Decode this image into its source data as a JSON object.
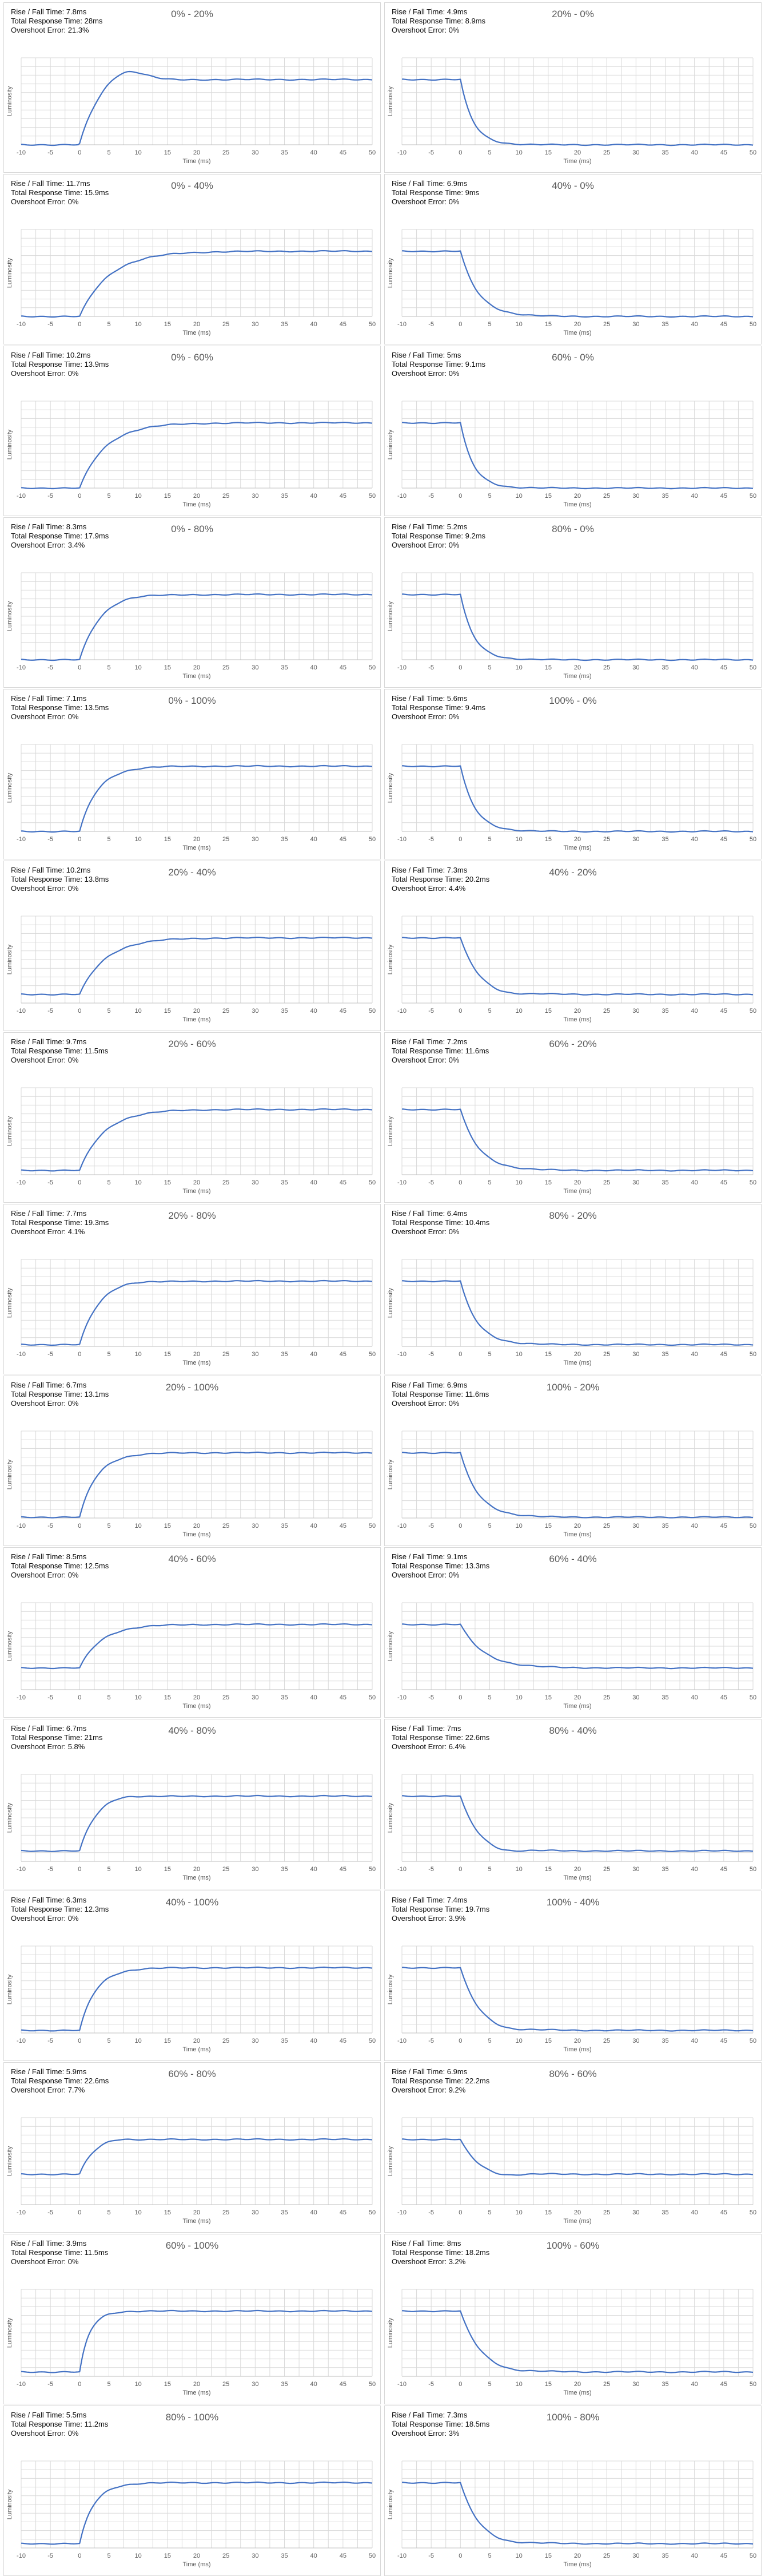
{
  "chart_data": [
    {
      "type": "line",
      "title": "0% - 20%",
      "rise_fall": "Rise / Fall Time: 7.8ms",
      "total": "Total Response Time: 28ms",
      "overshoot": "Overshoot Error: 21.3%",
      "xlabel": "Time (ms)",
      "ylabel": "Luminosity",
      "xlim": [
        -10,
        50
      ],
      "xticks": [
        -10,
        -5,
        0,
        5,
        10,
        15,
        20,
        25,
        30,
        35,
        40,
        45,
        50
      ],
      "transition": "rise",
      "start_level": 0.0,
      "end_level": 0.75,
      "response_ms": 7.8,
      "overshoot_fraction": 0.213
    },
    {
      "type": "line",
      "title": "20% - 0%",
      "rise_fall": "Rise / Fall Time: 4.9ms",
      "total": "Total Response Time: 8.9ms",
      "overshoot": "Overshoot Error: 0%",
      "xlabel": "Time (ms)",
      "ylabel": "Luminosity",
      "xlim": [
        -10,
        50
      ],
      "xticks": [
        -10,
        -5,
        0,
        5,
        10,
        15,
        20,
        25,
        30,
        35,
        40,
        45,
        50
      ],
      "transition": "fall",
      "start_level": 0.75,
      "end_level": 0.0,
      "response_ms": 4.9,
      "overshoot_fraction": 0
    },
    {
      "type": "line",
      "title": "0% - 40%",
      "rise_fall": "Rise / Fall Time: 11.7ms",
      "total": "Total Response Time: 15.9ms",
      "overshoot": "Overshoot Error: 0%",
      "xlabel": "Time (ms)",
      "ylabel": "Luminosity",
      "xlim": [
        -10,
        50
      ],
      "xticks": [
        -10,
        -5,
        0,
        5,
        10,
        15,
        20,
        25,
        30,
        35,
        40,
        45,
        50
      ],
      "transition": "rise",
      "start_level": 0.0,
      "end_level": 0.75,
      "response_ms": 11.7,
      "overshoot_fraction": 0
    },
    {
      "type": "line",
      "title": "40% - 0%",
      "rise_fall": "Rise / Fall Time: 6.9ms",
      "total": "Total Response Time: 9ms",
      "overshoot": "Overshoot Error: 0%",
      "xlabel": "Time (ms)",
      "ylabel": "Luminosity",
      "xlim": [
        -10,
        50
      ],
      "xticks": [
        -10,
        -5,
        0,
        5,
        10,
        15,
        20,
        25,
        30,
        35,
        40,
        45,
        50
      ],
      "transition": "fall",
      "start_level": 0.75,
      "end_level": 0.0,
      "response_ms": 6.9,
      "overshoot_fraction": 0
    },
    {
      "type": "line",
      "title": "0% - 60%",
      "rise_fall": "Rise / Fall Time: 10.2ms",
      "total": "Total Response Time: 13.9ms",
      "overshoot": "Overshoot Error: 0%",
      "xlabel": "Time (ms)",
      "ylabel": "Luminosity",
      "xlim": [
        -10,
        50
      ],
      "xticks": [
        -10,
        -5,
        0,
        5,
        10,
        15,
        20,
        25,
        30,
        35,
        40,
        45,
        50
      ],
      "transition": "rise",
      "start_level": 0.0,
      "end_level": 0.75,
      "response_ms": 10.2,
      "overshoot_fraction": 0
    },
    {
      "type": "line",
      "title": "60% - 0%",
      "rise_fall": "Rise / Fall Time: 5ms",
      "total": "Total Response Time: 9.1ms",
      "overshoot": "Overshoot Error: 0%",
      "xlabel": "Time (ms)",
      "ylabel": "Luminosity",
      "xlim": [
        -10,
        50
      ],
      "xticks": [
        -10,
        -5,
        0,
        5,
        10,
        15,
        20,
        25,
        30,
        35,
        40,
        45,
        50
      ],
      "transition": "fall",
      "start_level": 0.75,
      "end_level": 0.0,
      "response_ms": 5,
      "overshoot_fraction": 0
    },
    {
      "type": "line",
      "title": "0% - 80%",
      "rise_fall": "Rise / Fall Time: 8.3ms",
      "total": "Total Response Time: 17.9ms",
      "overshoot": "Overshoot Error: 3.4%",
      "xlabel": "Time (ms)",
      "ylabel": "Luminosity",
      "xlim": [
        -10,
        50
      ],
      "xticks": [
        -10,
        -5,
        0,
        5,
        10,
        15,
        20,
        25,
        30,
        35,
        40,
        45,
        50
      ],
      "transition": "rise",
      "start_level": 0.0,
      "end_level": 0.75,
      "response_ms": 8.3,
      "overshoot_fraction": 0.034
    },
    {
      "type": "line",
      "title": "80% - 0%",
      "rise_fall": "Rise / Fall Time: 5.2ms",
      "total": "Total Response Time: 9.2ms",
      "overshoot": "Overshoot Error: 0%",
      "xlabel": "Time (ms)",
      "ylabel": "Luminosity",
      "xlim": [
        -10,
        50
      ],
      "xticks": [
        -10,
        -5,
        0,
        5,
        10,
        15,
        20,
        25,
        30,
        35,
        40,
        45,
        50
      ],
      "transition": "fall",
      "start_level": 0.75,
      "end_level": 0.0,
      "response_ms": 5.2,
      "overshoot_fraction": 0
    },
    {
      "type": "line",
      "title": "0% - 100%",
      "rise_fall": "Rise / Fall Time: 7.1ms",
      "total": "Total Response Time: 13.5ms",
      "overshoot": "Overshoot Error: 0%",
      "xlabel": "Time (ms)",
      "ylabel": "Luminosity",
      "xlim": [
        -10,
        50
      ],
      "xticks": [
        -10,
        -5,
        0,
        5,
        10,
        15,
        20,
        25,
        30,
        35,
        40,
        45,
        50
      ],
      "transition": "rise",
      "start_level": 0.0,
      "end_level": 0.75,
      "response_ms": 7.1,
      "overshoot_fraction": 0
    },
    {
      "type": "line",
      "title": "100% - 0%",
      "rise_fall": "Rise / Fall Time: 5.6ms",
      "total": "Total Response Time: 9.4ms",
      "overshoot": "Overshoot Error: 0%",
      "xlabel": "Time (ms)",
      "ylabel": "Luminosity",
      "xlim": [
        -10,
        50
      ],
      "xticks": [
        -10,
        -5,
        0,
        5,
        10,
        15,
        20,
        25,
        30,
        35,
        40,
        45,
        50
      ],
      "transition": "fall",
      "start_level": 0.75,
      "end_level": 0.0,
      "response_ms": 5.6,
      "overshoot_fraction": 0
    },
    {
      "type": "line",
      "title": "20% - 40%",
      "rise_fall": "Rise / Fall Time: 10.2ms",
      "total": "Total Response Time: 13.8ms",
      "overshoot": "Overshoot Error: 0%",
      "xlabel": "Time (ms)",
      "ylabel": "Luminosity",
      "xlim": [
        -10,
        50
      ],
      "xticks": [
        -10,
        -5,
        0,
        5,
        10,
        15,
        20,
        25,
        30,
        35,
        40,
        45,
        50
      ],
      "transition": "rise",
      "start_level": 0.1,
      "end_level": 0.75,
      "response_ms": 10.2,
      "overshoot_fraction": 0
    },
    {
      "type": "line",
      "title": "40% - 20%",
      "rise_fall": "Rise / Fall Time: 7.3ms",
      "total": "Total Response Time: 20.2ms",
      "overshoot": "Overshoot Error: 4.4%",
      "xlabel": "Time (ms)",
      "ylabel": "Luminosity",
      "xlim": [
        -10,
        50
      ],
      "xticks": [
        -10,
        -5,
        0,
        5,
        10,
        15,
        20,
        25,
        30,
        35,
        40,
        45,
        50
      ],
      "transition": "fall",
      "start_level": 0.75,
      "end_level": 0.1,
      "response_ms": 7.3,
      "overshoot_fraction": 0.044
    },
    {
      "type": "line",
      "title": "20% - 60%",
      "rise_fall": "Rise / Fall Time: 9.7ms",
      "total": "Total Response Time: 11.5ms",
      "overshoot": "Overshoot Error: 0%",
      "xlabel": "Time (ms)",
      "ylabel": "Luminosity",
      "xlim": [
        -10,
        50
      ],
      "xticks": [
        -10,
        -5,
        0,
        5,
        10,
        15,
        20,
        25,
        30,
        35,
        40,
        45,
        50
      ],
      "transition": "rise",
      "start_level": 0.05,
      "end_level": 0.75,
      "response_ms": 9.7,
      "overshoot_fraction": 0
    },
    {
      "type": "line",
      "title": "60% - 20%",
      "rise_fall": "Rise / Fall Time: 7.2ms",
      "total": "Total Response Time: 11.6ms",
      "overshoot": "Overshoot Error: 0%",
      "xlabel": "Time (ms)",
      "ylabel": "Luminosity",
      "xlim": [
        -10,
        50
      ],
      "xticks": [
        -10,
        -5,
        0,
        5,
        10,
        15,
        20,
        25,
        30,
        35,
        40,
        45,
        50
      ],
      "transition": "fall",
      "start_level": 0.75,
      "end_level": 0.05,
      "response_ms": 7.2,
      "overshoot_fraction": 0
    },
    {
      "type": "line",
      "title": "20% - 80%",
      "rise_fall": "Rise / Fall Time: 7.7ms",
      "total": "Total Response Time: 19.3ms",
      "overshoot": "Overshoot Error: 4.1%",
      "xlabel": "Time (ms)",
      "ylabel": "Luminosity",
      "xlim": [
        -10,
        50
      ],
      "xticks": [
        -10,
        -5,
        0,
        5,
        10,
        15,
        20,
        25,
        30,
        35,
        40,
        45,
        50
      ],
      "transition": "rise",
      "start_level": 0.02,
      "end_level": 0.75,
      "response_ms": 7.7,
      "overshoot_fraction": 0.041
    },
    {
      "type": "line",
      "title": "80% - 20%",
      "rise_fall": "Rise / Fall Time: 6.4ms",
      "total": "Total Response Time: 10.4ms",
      "overshoot": "Overshoot Error: 0%",
      "xlabel": "Time (ms)",
      "ylabel": "Luminosity",
      "xlim": [
        -10,
        50
      ],
      "xticks": [
        -10,
        -5,
        0,
        5,
        10,
        15,
        20,
        25,
        30,
        35,
        40,
        45,
        50
      ],
      "transition": "fall",
      "start_level": 0.75,
      "end_level": 0.02,
      "response_ms": 6.4,
      "overshoot_fraction": 0
    },
    {
      "type": "line",
      "title": "20% - 100%",
      "rise_fall": "Rise / Fall Time: 6.7ms",
      "total": "Total Response Time: 13.1ms",
      "overshoot": "Overshoot Error: 0%",
      "xlabel": "Time (ms)",
      "ylabel": "Luminosity",
      "xlim": [
        -10,
        50
      ],
      "xticks": [
        -10,
        -5,
        0,
        5,
        10,
        15,
        20,
        25,
        30,
        35,
        40,
        45,
        50
      ],
      "transition": "rise",
      "start_level": 0.01,
      "end_level": 0.75,
      "response_ms": 6.7,
      "overshoot_fraction": 0
    },
    {
      "type": "line",
      "title": "100% - 20%",
      "rise_fall": "Rise / Fall Time: 6.9ms",
      "total": "Total Response Time: 11.6ms",
      "overshoot": "Overshoot Error: 0%",
      "xlabel": "Time (ms)",
      "ylabel": "Luminosity",
      "xlim": [
        -10,
        50
      ],
      "xticks": [
        -10,
        -5,
        0,
        5,
        10,
        15,
        20,
        25,
        30,
        35,
        40,
        45,
        50
      ],
      "transition": "fall",
      "start_level": 0.75,
      "end_level": 0.01,
      "response_ms": 6.9,
      "overshoot_fraction": 0
    },
    {
      "type": "line",
      "title": "40% - 60%",
      "rise_fall": "Rise / Fall Time: 8.5ms",
      "total": "Total Response Time: 12.5ms",
      "overshoot": "Overshoot Error: 0%",
      "xlabel": "Time (ms)",
      "ylabel": "Luminosity",
      "xlim": [
        -10,
        50
      ],
      "xticks": [
        -10,
        -5,
        0,
        5,
        10,
        15,
        20,
        25,
        30,
        35,
        40,
        45,
        50
      ],
      "transition": "rise",
      "start_level": 0.25,
      "end_level": 0.75,
      "response_ms": 8.5,
      "overshoot_fraction": 0
    },
    {
      "type": "line",
      "title": "60% - 40%",
      "rise_fall": "Rise / Fall Time: 9.1ms",
      "total": "Total Response Time: 13.3ms",
      "overshoot": "Overshoot Error: 0%",
      "xlabel": "Time (ms)",
      "ylabel": "Luminosity",
      "xlim": [
        -10,
        50
      ],
      "xticks": [
        -10,
        -5,
        0,
        5,
        10,
        15,
        20,
        25,
        30,
        35,
        40,
        45,
        50
      ],
      "transition": "fall",
      "start_level": 0.75,
      "end_level": 0.25,
      "response_ms": 9.1,
      "overshoot_fraction": 0
    },
    {
      "type": "line",
      "title": "40% - 80%",
      "rise_fall": "Rise / Fall Time: 6.7ms",
      "total": "Total Response Time: 21ms",
      "overshoot": "Overshoot Error: 5.8%",
      "xlabel": "Time (ms)",
      "ylabel": "Luminosity",
      "xlim": [
        -10,
        50
      ],
      "xticks": [
        -10,
        -5,
        0,
        5,
        10,
        15,
        20,
        25,
        30,
        35,
        40,
        45,
        50
      ],
      "transition": "rise",
      "start_level": 0.12,
      "end_level": 0.75,
      "response_ms": 6.7,
      "overshoot_fraction": 0.058
    },
    {
      "type": "line",
      "title": "80% - 40%",
      "rise_fall": "Rise / Fall Time: 7ms",
      "total": "Total Response Time: 22.6ms",
      "overshoot": "Overshoot Error: 6.4%",
      "xlabel": "Time (ms)",
      "ylabel": "Luminosity",
      "xlim": [
        -10,
        50
      ],
      "xticks": [
        -10,
        -5,
        0,
        5,
        10,
        15,
        20,
        25,
        30,
        35,
        40,
        45,
        50
      ],
      "transition": "fall",
      "start_level": 0.75,
      "end_level": 0.12,
      "response_ms": 7,
      "overshoot_fraction": 0.064
    },
    {
      "type": "line",
      "title": "40% - 100%",
      "rise_fall": "Rise / Fall Time: 6.3ms",
      "total": "Total Response Time: 12.3ms",
      "overshoot": "Overshoot Error: 0%",
      "xlabel": "Time (ms)",
      "ylabel": "Luminosity",
      "xlim": [
        -10,
        50
      ],
      "xticks": [
        -10,
        -5,
        0,
        5,
        10,
        15,
        20,
        25,
        30,
        35,
        40,
        45,
        50
      ],
      "transition": "rise",
      "start_level": 0.03,
      "end_level": 0.75,
      "response_ms": 6.3,
      "overshoot_fraction": 0
    },
    {
      "type": "line",
      "title": "100% - 40%",
      "rise_fall": "Rise / Fall Time: 7.4ms",
      "total": "Total Response Time: 19.7ms",
      "overshoot": "Overshoot Error: 3.9%",
      "xlabel": "Time (ms)",
      "ylabel": "Luminosity",
      "xlim": [
        -10,
        50
      ],
      "xticks": [
        -10,
        -5,
        0,
        5,
        10,
        15,
        20,
        25,
        30,
        35,
        40,
        45,
        50
      ],
      "transition": "fall",
      "start_level": 0.75,
      "end_level": 0.03,
      "response_ms": 7.4,
      "overshoot_fraction": 0.039
    },
    {
      "type": "line",
      "title": "60% - 80%",
      "rise_fall": "Rise / Fall Time: 5.9ms",
      "total": "Total Response Time: 22.6ms",
      "overshoot": "Overshoot Error: 7.7%",
      "xlabel": "Time (ms)",
      "ylabel": "Luminosity",
      "xlim": [
        -10,
        50
      ],
      "xticks": [
        -10,
        -5,
        0,
        5,
        10,
        15,
        20,
        25,
        30,
        35,
        40,
        45,
        50
      ],
      "transition": "rise",
      "start_level": 0.35,
      "end_level": 0.75,
      "response_ms": 5.9,
      "overshoot_fraction": 0.077
    },
    {
      "type": "line",
      "title": "80% - 60%",
      "rise_fall": "Rise / Fall Time: 6.9ms",
      "total": "Total Response Time: 22.2ms",
      "overshoot": "Overshoot Error: 9.2%",
      "xlabel": "Time (ms)",
      "ylabel": "Luminosity",
      "xlim": [
        -10,
        50
      ],
      "xticks": [
        -10,
        -5,
        0,
        5,
        10,
        15,
        20,
        25,
        30,
        35,
        40,
        45,
        50
      ],
      "transition": "fall",
      "start_level": 0.75,
      "end_level": 0.35,
      "response_ms": 6.9,
      "overshoot_fraction": 0.092
    },
    {
      "type": "line",
      "title": "60% - 100%",
      "rise_fall": "Rise / Fall Time: 3.9ms",
      "total": "Total Response Time: 11.5ms",
      "overshoot": "Overshoot Error: 0%",
      "xlabel": "Time (ms)",
      "ylabel": "Luminosity",
      "xlim": [
        -10,
        50
      ],
      "xticks": [
        -10,
        -5,
        0,
        5,
        10,
        15,
        20,
        25,
        30,
        35,
        40,
        45,
        50
      ],
      "transition": "rise",
      "start_level": 0.05,
      "end_level": 0.75,
      "response_ms": 3.9,
      "overshoot_fraction": 0
    },
    {
      "type": "line",
      "title": "100% - 60%",
      "rise_fall": "Rise / Fall Time: 8ms",
      "total": "Total Response Time: 18.2ms",
      "overshoot": "Overshoot Error: 3.2%",
      "xlabel": "Time (ms)",
      "ylabel": "Luminosity",
      "xlim": [
        -10,
        50
      ],
      "xticks": [
        -10,
        -5,
        0,
        5,
        10,
        15,
        20,
        25,
        30,
        35,
        40,
        45,
        50
      ],
      "transition": "fall",
      "start_level": 0.75,
      "end_level": 0.05,
      "response_ms": 8,
      "overshoot_fraction": 0.032
    },
    {
      "type": "line",
      "title": "80% - 100%",
      "rise_fall": "Rise / Fall Time: 5.5ms",
      "total": "Total Response Time: 11.2ms",
      "overshoot": "Overshoot Error: 0%",
      "xlabel": "Time (ms)",
      "ylabel": "Luminosity",
      "xlim": [
        -10,
        50
      ],
      "xticks": [
        -10,
        -5,
        0,
        5,
        10,
        15,
        20,
        25,
        30,
        35,
        40,
        45,
        50
      ],
      "transition": "rise",
      "start_level": 0.05,
      "end_level": 0.75,
      "response_ms": 5.5,
      "overshoot_fraction": 0
    },
    {
      "type": "line",
      "title": "100% - 80%",
      "rise_fall": "Rise / Fall Time: 7.3ms",
      "total": "Total Response Time: 18.5ms",
      "overshoot": "Overshoot Error: 3%",
      "xlabel": "Time (ms)",
      "ylabel": "Luminosity",
      "xlim": [
        -10,
        50
      ],
      "xticks": [
        -10,
        -5,
        0,
        5,
        10,
        15,
        20,
        25,
        30,
        35,
        40,
        45,
        50
      ],
      "transition": "fall",
      "start_level": 0.75,
      "end_level": 0.05,
      "response_ms": 7.3,
      "overshoot_fraction": 0.03
    }
  ],
  "style": {
    "line_color": "#4472c4",
    "grid_color": "#d9d9d9",
    "title_color": "#595959"
  }
}
